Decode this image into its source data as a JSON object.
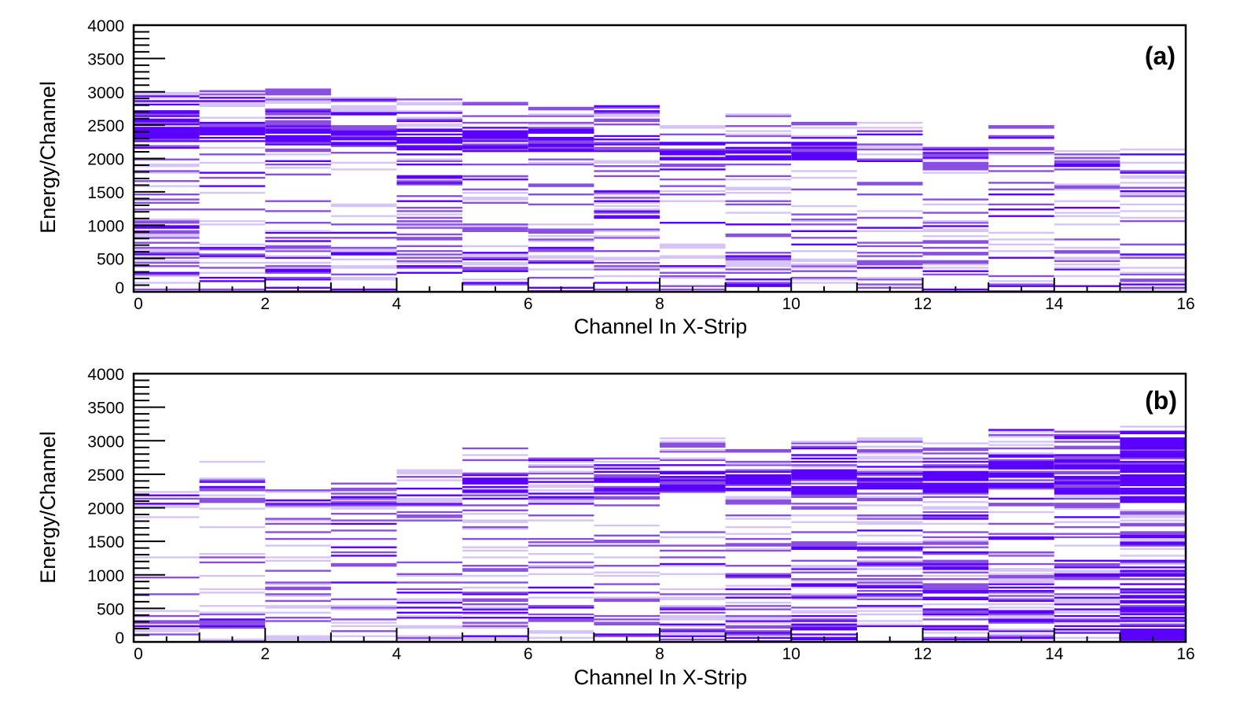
{
  "chart_data": [
    {
      "type": "heatmap",
      "panel_label": "(a)",
      "xlabel": "Channel In X-Strip",
      "ylabel": "Energy/Channel",
      "xlim": [
        0,
        16
      ],
      "ylim": [
        0,
        4000
      ],
      "x_ticks": [
        "0",
        "2",
        "4",
        "6",
        "8",
        "10",
        "12",
        "14",
        "16"
      ],
      "y_ticks": [
        "0",
        "500",
        "1000",
        "1500",
        "2000",
        "2500",
        "3000",
        "3500",
        "4000"
      ],
      "colors": {
        "dense": "#5a00ff",
        "medium": "#8a4fe0",
        "light": "#d6c4f6"
      },
      "channels": [
        {
          "x": 0,
          "bands": [
            [
              0,
              1000,
              0.55
            ],
            [
              1000,
              2250,
              0.35
            ],
            [
              2250,
              2600,
              1.0
            ],
            [
              2600,
              3000,
              0.7
            ]
          ]
        },
        {
          "x": 1,
          "bands": [
            [
              0,
              800,
              0.45
            ],
            [
              800,
              2250,
              0.2
            ],
            [
              2250,
              2500,
              1.0
            ],
            [
              2500,
              3100,
              0.65
            ]
          ]
        },
        {
          "x": 2,
          "bands": [
            [
              0,
              700,
              0.4
            ],
            [
              700,
              2200,
              0.25
            ],
            [
              2200,
              2500,
              1.0
            ],
            [
              2500,
              3050,
              0.6
            ]
          ]
        },
        {
          "x": 3,
          "bands": [
            [
              0,
              1000,
              0.4
            ],
            [
              1000,
              2200,
              0.15
            ],
            [
              2200,
              2500,
              1.0
            ],
            [
              2500,
              2950,
              0.55
            ]
          ]
        },
        {
          "x": 4,
          "bands": [
            [
              0,
              900,
              0.4
            ],
            [
              900,
              2100,
              0.25
            ],
            [
              2100,
              2450,
              0.95
            ],
            [
              2450,
              2900,
              0.5
            ]
          ]
        },
        {
          "x": 5,
          "bands": [
            [
              0,
              1000,
              0.35
            ],
            [
              1000,
              2100,
              0.2
            ],
            [
              2100,
              2450,
              0.9
            ],
            [
              2450,
              2900,
              0.45
            ]
          ]
        },
        {
          "x": 6,
          "bands": [
            [
              0,
              1100,
              0.4
            ],
            [
              1100,
              2100,
              0.2
            ],
            [
              2100,
              2400,
              0.9
            ],
            [
              2400,
              2800,
              0.45
            ]
          ]
        },
        {
          "x": 7,
          "bands": [
            [
              0,
              1000,
              0.3
            ],
            [
              1000,
              2100,
              0.2
            ],
            [
              2100,
              2400,
              0.9
            ],
            [
              2400,
              2800,
              0.45
            ]
          ]
        },
        {
          "x": 8,
          "bands": [
            [
              0,
              1000,
              0.3
            ],
            [
              1000,
              1950,
              0.3
            ],
            [
              1950,
              2250,
              0.9
            ],
            [
              2250,
              2500,
              0.4
            ]
          ]
        },
        {
          "x": 9,
          "bands": [
            [
              0,
              600,
              0.4
            ],
            [
              600,
              1950,
              0.15
            ],
            [
              1950,
              2250,
              0.85
            ],
            [
              2250,
              2700,
              0.4
            ]
          ]
        },
        {
          "x": 10,
          "bands": [
            [
              0,
              1000,
              0.25
            ],
            [
              1000,
              1950,
              0.25
            ],
            [
              1950,
              2250,
              0.85
            ],
            [
              2250,
              2550,
              0.4
            ]
          ]
        },
        {
          "x": 11,
          "bands": [
            [
              0,
              1200,
              0.3
            ],
            [
              1200,
              1900,
              0.2
            ],
            [
              1900,
              2200,
              0.8
            ],
            [
              2200,
              2600,
              0.35
            ]
          ]
        },
        {
          "x": 12,
          "bands": [
            [
              0,
              1100,
              0.3
            ],
            [
              1100,
              1800,
              0.2
            ],
            [
              1800,
              2100,
              0.75
            ],
            [
              2100,
              2200,
              0.4
            ]
          ]
        },
        {
          "x": 13,
          "bands": [
            [
              0,
              1200,
              0.25
            ],
            [
              1200,
              1850,
              0.25
            ],
            [
              1850,
              2200,
              0.75
            ],
            [
              2200,
              2500,
              0.35
            ]
          ]
        },
        {
          "x": 14,
          "bands": [
            [
              0,
              1000,
              0.25
            ],
            [
              1000,
              1800,
              0.2
            ],
            [
              1800,
              2150,
              0.6
            ],
            [
              2150,
              2200,
              0.4
            ]
          ]
        },
        {
          "x": 15,
          "bands": [
            [
              0,
              1200,
              0.3
            ],
            [
              1200,
              1700,
              0.25
            ],
            [
              1700,
              2000,
              0.5
            ],
            [
              2000,
              2150,
              0.3
            ]
          ]
        }
      ]
    },
    {
      "type": "heatmap",
      "panel_label": "(b)",
      "xlabel": "Channel In X-Strip",
      "ylabel": "Energy/Channel",
      "xlim": [
        0,
        16
      ],
      "ylim": [
        0,
        4000
      ],
      "x_ticks": [
        "0",
        "2",
        "4",
        "6",
        "8",
        "10",
        "12",
        "14",
        "16"
      ],
      "y_ticks": [
        "0",
        "500",
        "1000",
        "1500",
        "2000",
        "2500",
        "3000",
        "3500",
        "4000"
      ],
      "colors": {
        "dense": "#5a00ff",
        "medium": "#8a4fe0",
        "light": "#d6c4f6"
      },
      "channels": [
        {
          "x": 0,
          "bands": [
            [
              0,
              300,
              0.6
            ],
            [
              300,
              2000,
              0.1
            ],
            [
              2000,
              2250,
              0.55
            ]
          ]
        },
        {
          "x": 1,
          "bands": [
            [
              0,
              800,
              0.4
            ],
            [
              800,
              2000,
              0.15
            ],
            [
              2000,
              2450,
              0.6
            ],
            [
              2450,
              2850,
              0.2
            ]
          ]
        },
        {
          "x": 2,
          "bands": [
            [
              0,
              900,
              0.45
            ],
            [
              900,
              1950,
              0.1
            ],
            [
              1950,
              2250,
              0.6
            ],
            [
              2250,
              2650,
              0.1
            ]
          ]
        },
        {
          "x": 3,
          "bands": [
            [
              0,
              900,
              0.45
            ],
            [
              900,
              2000,
              0.2
            ],
            [
              2000,
              2300,
              0.65
            ],
            [
              2300,
              2750,
              0.1
            ]
          ]
        },
        {
          "x": 4,
          "bands": [
            [
              0,
              600,
              0.45
            ],
            [
              600,
              1950,
              0.3
            ],
            [
              1950,
              2300,
              0.7
            ],
            [
              2300,
              2600,
              0.25
            ]
          ]
        },
        {
          "x": 5,
          "bands": [
            [
              0,
              900,
              0.4
            ],
            [
              900,
              2100,
              0.25
            ],
            [
              2100,
              2500,
              0.75
            ],
            [
              2500,
              2900,
              0.2
            ]
          ]
        },
        {
          "x": 6,
          "bands": [
            [
              0,
              700,
              0.5
            ],
            [
              700,
              2050,
              0.25
            ],
            [
              2050,
              2350,
              0.8
            ],
            [
              2350,
              2800,
              0.3
            ]
          ]
        },
        {
          "x": 7,
          "bands": [
            [
              0,
              700,
              0.35
            ],
            [
              700,
              2200,
              0.15
            ],
            [
              2200,
              2550,
              0.85
            ],
            [
              2550,
              2900,
              0.35
            ]
          ]
        },
        {
          "x": 8,
          "bands": [
            [
              0,
              600,
              0.55
            ],
            [
              600,
              2250,
              0.2
            ],
            [
              2250,
              2550,
              0.85
            ],
            [
              2550,
              3050,
              0.45
            ]
          ]
        },
        {
          "x": 9,
          "bands": [
            [
              0,
              800,
              0.5
            ],
            [
              800,
              2250,
              0.25
            ],
            [
              2250,
              2550,
              0.9
            ],
            [
              2550,
              3000,
              0.4
            ]
          ]
        },
        {
          "x": 10,
          "bands": [
            [
              0,
              1000,
              0.55
            ],
            [
              1000,
              2150,
              0.35
            ],
            [
              2150,
              2550,
              0.9
            ],
            [
              2550,
              3000,
              0.45
            ]
          ]
        },
        {
          "x": 11,
          "bands": [
            [
              0,
              1100,
              0.55
            ],
            [
              1100,
              2200,
              0.4
            ],
            [
              2200,
              2550,
              0.95
            ],
            [
              2550,
              3050,
              0.5
            ]
          ]
        },
        {
          "x": 12,
          "bands": [
            [
              0,
              1200,
              0.6
            ],
            [
              1200,
              2200,
              0.45
            ],
            [
              2200,
              2550,
              0.95
            ],
            [
              2550,
              3000,
              0.5
            ]
          ]
        },
        {
          "x": 13,
          "bands": [
            [
              0,
              1100,
              0.65
            ],
            [
              1100,
              2250,
              0.4
            ],
            [
              2250,
              2700,
              1.0
            ],
            [
              2700,
              3200,
              0.55
            ]
          ]
        },
        {
          "x": 14,
          "bands": [
            [
              0,
              1200,
              0.7
            ],
            [
              1200,
              2200,
              0.45
            ],
            [
              2200,
              2700,
              1.0
            ],
            [
              2700,
              3150,
              0.55
            ]
          ]
        },
        {
          "x": 15,
          "bands": [
            [
              0,
              1100,
              0.85
            ],
            [
              1100,
              2100,
              0.7
            ],
            [
              2100,
              3050,
              1.0
            ],
            [
              3050,
              3250,
              0.6
            ]
          ]
        }
      ]
    }
  ]
}
